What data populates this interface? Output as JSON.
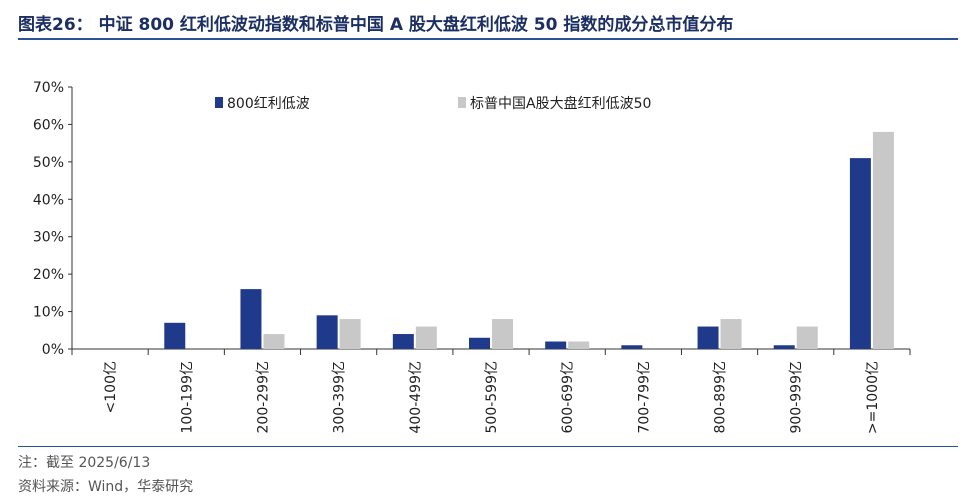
{
  "figure": {
    "title": "图表26：  中证 800 红利低波动指数和标普中国 A 股大盘红利低波 50 指数的成分总市值分布",
    "note": "注：截至 2025/6/13",
    "source": "资料来源：Wind，华泰研究"
  },
  "colors": {
    "series_1": "#1f3a8a",
    "series_2": "#c8c8c8",
    "title": "#1c2f63",
    "rule": "#2f4f9a"
  },
  "chart_data": {
    "type": "bar",
    "title": "",
    "xlabel": "",
    "ylabel": "",
    "categories": [
      "<100亿",
      "100-199亿",
      "200-299亿",
      "300-399亿",
      "400-499亿",
      "500-599亿",
      "600-699亿",
      "700-799亿",
      "800-899亿",
      "900-999亿",
      ">=1000亿"
    ],
    "series": [
      {
        "name": "800红利低波",
        "values": [
          0,
          7,
          16,
          9,
          4,
          3,
          2,
          1,
          6,
          1,
          51
        ]
      },
      {
        "name": "标普中国A股大盘红利低波50",
        "values": [
          0,
          0,
          4,
          8,
          6,
          8,
          2,
          0,
          8,
          6,
          58
        ]
      }
    ],
    "ylim": [
      0,
      70
    ],
    "yticks": [
      "0%",
      "10%",
      "20%",
      "30%",
      "40%",
      "50%",
      "60%",
      "70%"
    ],
    "grid": false,
    "legend_position": "top"
  }
}
